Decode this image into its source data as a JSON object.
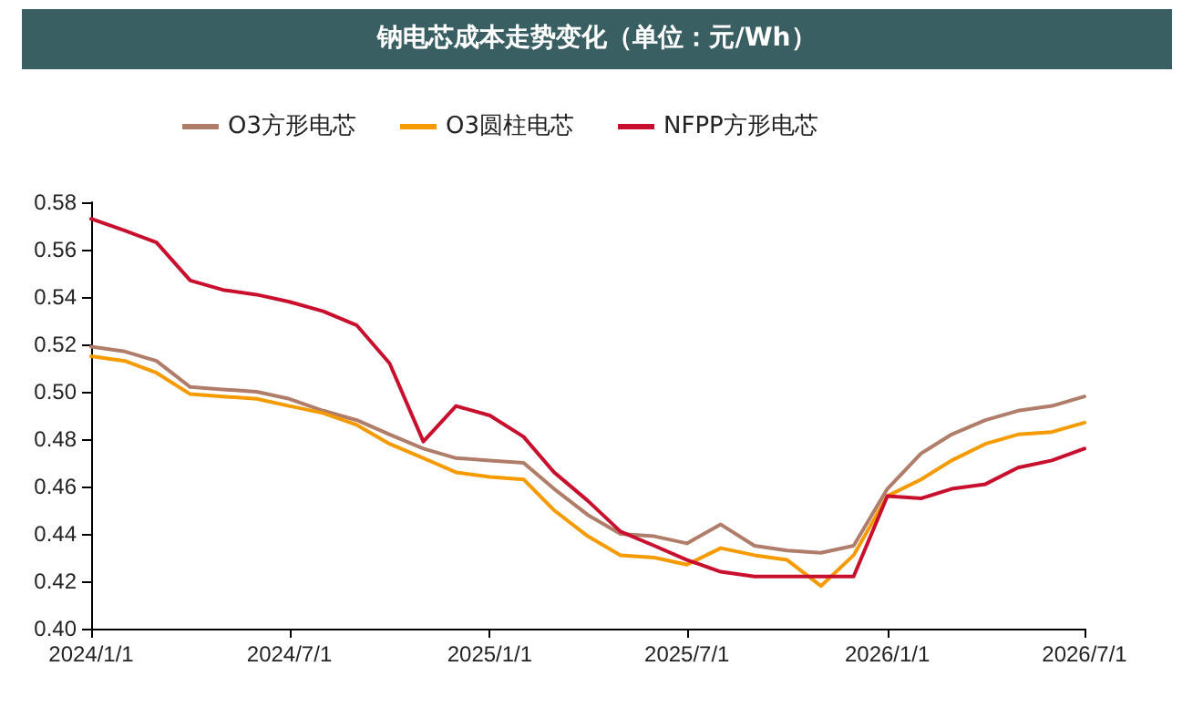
{
  "chart_data": {
    "type": "line",
    "title": "钠电芯成本走势变化（单位：元/Wh）",
    "x": [
      "2024-01-01",
      "2024-02-01",
      "2024-03-01",
      "2024-04-01",
      "2024-05-01",
      "2024-06-01",
      "2024-07-01",
      "2024-08-01",
      "2024-09-01",
      "2024-10-01",
      "2024-11-01",
      "2024-12-01",
      "2025-01-01",
      "2025-02-01",
      "2025-03-01",
      "2025-04-01",
      "2025-05-01",
      "2025-06-01",
      "2025-07-01",
      "2025-08-01",
      "2025-09-01",
      "2025-10-01",
      "2025-11-01",
      "2025-12-01",
      "2026-01-01",
      "2026-02-01",
      "2026-03-01",
      "2026-04-01",
      "2026-05-01",
      "2026-06-01",
      "2026-07-01"
    ],
    "series": [
      {
        "name": "O3方形电芯",
        "color": "#b07d6a",
        "values": [
          0.519,
          0.517,
          0.513,
          0.502,
          0.501,
          0.5,
          0.497,
          0.492,
          0.488,
          0.482,
          0.476,
          0.472,
          0.471,
          0.47,
          0.459,
          0.448,
          0.44,
          0.439,
          0.436,
          0.444,
          0.435,
          0.433,
          0.432,
          0.435,
          0.459,
          0.474,
          0.482,
          0.488,
          0.492,
          0.494,
          0.498
        ]
      },
      {
        "name": "O3圆柱电芯",
        "color": "#f59b00",
        "values": [
          0.515,
          0.513,
          0.508,
          0.499,
          0.498,
          0.497,
          0.494,
          0.491,
          0.486,
          0.478,
          0.472,
          0.466,
          0.464,
          0.463,
          0.45,
          0.439,
          0.431,
          0.43,
          0.427,
          0.434,
          0.431,
          0.429,
          0.418,
          0.431,
          0.456,
          0.463,
          0.471,
          0.478,
          0.482,
          0.483,
          0.487
        ]
      },
      {
        "name": "NFPP方形电芯",
        "color": "#c8102e",
        "values": [
          0.573,
          0.568,
          0.563,
          0.547,
          0.543,
          0.541,
          0.538,
          0.534,
          0.528,
          0.512,
          0.479,
          0.494,
          0.49,
          0.481,
          0.466,
          0.454,
          0.441,
          0.435,
          0.429,
          0.424,
          0.422,
          0.422,
          0.422,
          0.422,
          0.456,
          0.455,
          0.459,
          0.461,
          0.468,
          0.471,
          0.476
        ]
      }
    ],
    "xlim": [
      "2024-01-01",
      "2026-07-01"
    ],
    "xticks": [
      {
        "value": "2024-01-01",
        "label": "2024/1/1"
      },
      {
        "value": "2024-07-01",
        "label": "2024/7/1"
      },
      {
        "value": "2025-01-01",
        "label": "2025/1/1"
      },
      {
        "value": "2025-07-01",
        "label": "2025/7/1"
      },
      {
        "value": "2026-01-01",
        "label": "2026/1/1"
      },
      {
        "value": "2026-07-01",
        "label": "2026/7/1"
      }
    ],
    "ylim": [
      0.4,
      0.58
    ],
    "yticks": [
      {
        "value": 0.4,
        "label": "0.40"
      },
      0.42,
      0.44,
      0.46,
      0.48,
      {
        "value": 0.5,
        "label": "0.50"
      },
      0.52,
      0.54,
      0.56,
      0.58
    ],
    "grid": false,
    "legend": "top",
    "marker": "none",
    "line_style": "solid"
  }
}
